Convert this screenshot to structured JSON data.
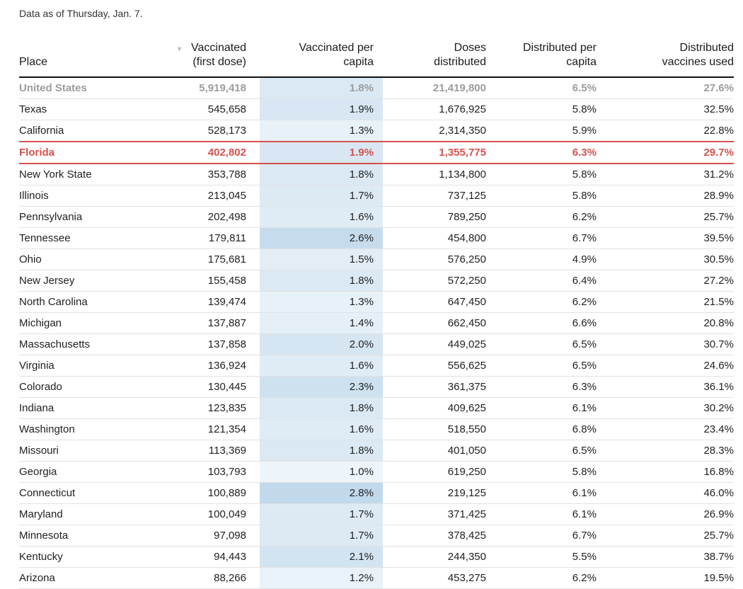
{
  "page": {
    "note": "Data as of Thursday, Jan. 7."
  },
  "colors": {
    "accent_red": "#d4524e",
    "summary_gray": "#9c9c9c",
    "header_border": "#111111",
    "row_border": "#e2e2e2",
    "heat_light": "#f1f7fb",
    "heat_dark": "#bed7ea",
    "sort_arrow_gray": "#b3b3b3"
  },
  "chart_data": {
    "type": "table",
    "title": "Data as of Thursday, Jan. 7.",
    "sort": {
      "column": "Vaccinated (first dose)",
      "direction": "descending"
    },
    "heat_scale": {
      "column": "Vaccinated per capita",
      "min": 0.9,
      "max": 2.9
    },
    "columns": [
      {
        "id": "place",
        "line1": "Place",
        "line2": ""
      },
      {
        "id": "vaccinated",
        "line1": "Vaccinated",
        "line2": "(first dose)",
        "sorted": "descending"
      },
      {
        "id": "per_capita",
        "line1": "Vaccinated per",
        "line2": "capita"
      },
      {
        "id": "doses",
        "line1": "Doses",
        "line2": "distributed"
      },
      {
        "id": "dist_per_capita",
        "line1": "Distributed per",
        "line2": "capita"
      },
      {
        "id": "used",
        "line1": "Distributed",
        "line2": "vaccines used"
      }
    ],
    "rows": [
      {
        "place": "United States",
        "vaccinated": "5,919,418",
        "per_capita": "1.8%",
        "per_capita_value": 1.8,
        "doses": "21,419,800",
        "dist_per_capita": "6.5%",
        "used": "27.6%",
        "style": "summary"
      },
      {
        "place": "Texas",
        "vaccinated": "545,658",
        "per_capita": "1.9%",
        "per_capita_value": 1.9,
        "doses": "1,676,925",
        "dist_per_capita": "5.8%",
        "used": "32.5%",
        "style": ""
      },
      {
        "place": "California",
        "vaccinated": "528,173",
        "per_capita": "1.3%",
        "per_capita_value": 1.3,
        "doses": "2,314,350",
        "dist_per_capita": "5.9%",
        "used": "22.8%",
        "style": ""
      },
      {
        "place": "Florida",
        "vaccinated": "402,802",
        "per_capita": "1.9%",
        "per_capita_value": 1.9,
        "doses": "1,355,775",
        "dist_per_capita": "6.3%",
        "used": "29.7%",
        "style": "highlight"
      },
      {
        "place": "New York State",
        "vaccinated": "353,788",
        "per_capita": "1.8%",
        "per_capita_value": 1.8,
        "doses": "1,134,800",
        "dist_per_capita": "5.8%",
        "used": "31.2%",
        "style": ""
      },
      {
        "place": "Illinois",
        "vaccinated": "213,045",
        "per_capita": "1.7%",
        "per_capita_value": 1.7,
        "doses": "737,125",
        "dist_per_capita": "5.8%",
        "used": "28.9%",
        "style": ""
      },
      {
        "place": "Pennsylvania",
        "vaccinated": "202,498",
        "per_capita": "1.6%",
        "per_capita_value": 1.6,
        "doses": "789,250",
        "dist_per_capita": "6.2%",
        "used": "25.7%",
        "style": ""
      },
      {
        "place": "Tennessee",
        "vaccinated": "179,811",
        "per_capita": "2.6%",
        "per_capita_value": 2.6,
        "doses": "454,800",
        "dist_per_capita": "6.7%",
        "used": "39.5%",
        "style": ""
      },
      {
        "place": "Ohio",
        "vaccinated": "175,681",
        "per_capita": "1.5%",
        "per_capita_value": 1.5,
        "doses": "576,250",
        "dist_per_capita": "4.9%",
        "used": "30.5%",
        "style": ""
      },
      {
        "place": "New Jersey",
        "vaccinated": "155,458",
        "per_capita": "1.8%",
        "per_capita_value": 1.8,
        "doses": "572,250",
        "dist_per_capita": "6.4%",
        "used": "27.2%",
        "style": ""
      },
      {
        "place": "North Carolina",
        "vaccinated": "139,474",
        "per_capita": "1.3%",
        "per_capita_value": 1.3,
        "doses": "647,450",
        "dist_per_capita": "6.2%",
        "used": "21.5%",
        "style": ""
      },
      {
        "place": "Michigan",
        "vaccinated": "137,887",
        "per_capita": "1.4%",
        "per_capita_value": 1.4,
        "doses": "662,450",
        "dist_per_capita": "6.6%",
        "used": "20.8%",
        "style": ""
      },
      {
        "place": "Massachusetts",
        "vaccinated": "137,858",
        "per_capita": "2.0%",
        "per_capita_value": 2.0,
        "doses": "449,025",
        "dist_per_capita": "6.5%",
        "used": "30.7%",
        "style": ""
      },
      {
        "place": "Virginia",
        "vaccinated": "136,924",
        "per_capita": "1.6%",
        "per_capita_value": 1.6,
        "doses": "556,625",
        "dist_per_capita": "6.5%",
        "used": "24.6%",
        "style": ""
      },
      {
        "place": "Colorado",
        "vaccinated": "130,445",
        "per_capita": "2.3%",
        "per_capita_value": 2.3,
        "doses": "361,375",
        "dist_per_capita": "6.3%",
        "used": "36.1%",
        "style": ""
      },
      {
        "place": "Indiana",
        "vaccinated": "123,835",
        "per_capita": "1.8%",
        "per_capita_value": 1.8,
        "doses": "409,625",
        "dist_per_capita": "6.1%",
        "used": "30.2%",
        "style": ""
      },
      {
        "place": "Washington",
        "vaccinated": "121,354",
        "per_capita": "1.6%",
        "per_capita_value": 1.6,
        "doses": "518,550",
        "dist_per_capita": "6.8%",
        "used": "23.4%",
        "style": ""
      },
      {
        "place": "Missouri",
        "vaccinated": "113,369",
        "per_capita": "1.8%",
        "per_capita_value": 1.8,
        "doses": "401,050",
        "dist_per_capita": "6.5%",
        "used": "28.3%",
        "style": ""
      },
      {
        "place": "Georgia",
        "vaccinated": "103,793",
        "per_capita": "1.0%",
        "per_capita_value": 1.0,
        "doses": "619,250",
        "dist_per_capita": "5.8%",
        "used": "16.8%",
        "style": ""
      },
      {
        "place": "Connecticut",
        "vaccinated": "100,889",
        "per_capita": "2.8%",
        "per_capita_value": 2.8,
        "doses": "219,125",
        "dist_per_capita": "6.1%",
        "used": "46.0%",
        "style": ""
      },
      {
        "place": "Maryland",
        "vaccinated": "100,049",
        "per_capita": "1.7%",
        "per_capita_value": 1.7,
        "doses": "371,425",
        "dist_per_capita": "6.1%",
        "used": "26.9%",
        "style": ""
      },
      {
        "place": "Minnesota",
        "vaccinated": "97,098",
        "per_capita": "1.7%",
        "per_capita_value": 1.7,
        "doses": "378,425",
        "dist_per_capita": "6.7%",
        "used": "25.7%",
        "style": ""
      },
      {
        "place": "Kentucky",
        "vaccinated": "94,443",
        "per_capita": "2.1%",
        "per_capita_value": 2.1,
        "doses": "244,350",
        "dist_per_capita": "5.5%",
        "used": "38.7%",
        "style": ""
      },
      {
        "place": "Arizona",
        "vaccinated": "88,266",
        "per_capita": "1.2%",
        "per_capita_value": 1.2,
        "doses": "453,275",
        "dist_per_capita": "6.2%",
        "used": "19.5%",
        "style": ""
      }
    ]
  }
}
